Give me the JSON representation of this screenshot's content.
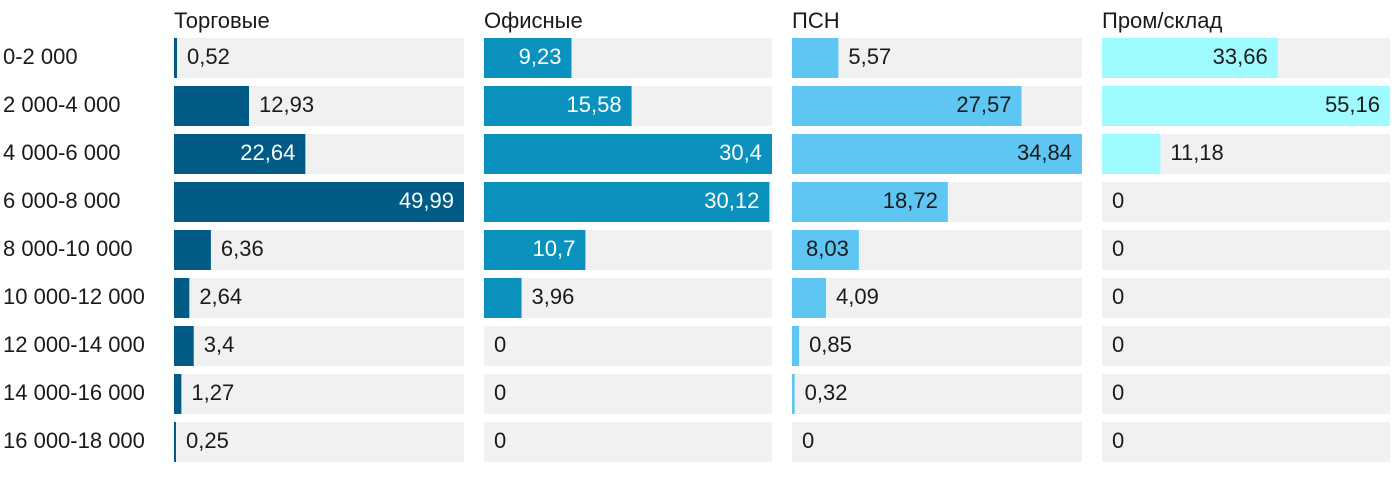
{
  "chart_data": {
    "type": "bar",
    "orientation": "horizontal",
    "categories": [
      "0-2 000",
      "2 000-4 000",
      "4 000-6 000",
      "6 000-8 000",
      "8 000-10 000",
      "10 000-12 000",
      "12 000-14 000",
      "14 000-16 000",
      "16 000-18 000"
    ],
    "series": [
      {
        "name": "Торговые",
        "color": "#005c86",
        "values": [
          0.52,
          12.93,
          22.64,
          49.99,
          6.36,
          2.64,
          3.4,
          1.27,
          0.25
        ],
        "labels": [
          "0,52",
          "12,93",
          "22,64",
          "49,99",
          "6,36",
          "2,64",
          "3,4",
          "1,27",
          "0,25"
        ]
      },
      {
        "name": "Офисные",
        "color": "#0a91be",
        "values": [
          9.23,
          15.58,
          30.4,
          30.12,
          10.7,
          3.96,
          0,
          0,
          0
        ],
        "labels": [
          "9,23",
          "15,58",
          "30,4",
          "30,12",
          "10,7",
          "3,96",
          "0",
          "0",
          "0"
        ]
      },
      {
        "name": "ПСН",
        "color": "#5ec6f2",
        "values": [
          5.57,
          27.57,
          34.84,
          18.72,
          8.03,
          4.09,
          0.85,
          0.32,
          0
        ],
        "labels": [
          "5,57",
          "27,57",
          "34,84",
          "18,72",
          "8,03",
          "4,09",
          "0,85",
          "0,32",
          "0"
        ]
      },
      {
        "name": "Пром/склад",
        "color": "#9efafe",
        "values": [
          33.66,
          55.16,
          11.18,
          0,
          0,
          0,
          0,
          0,
          0
        ],
        "labels": [
          "33,66",
          "55,16",
          "11,18",
          "0",
          "0",
          "0",
          "0",
          "0",
          "0"
        ]
      }
    ],
    "track_color": "#f1f1f1"
  }
}
